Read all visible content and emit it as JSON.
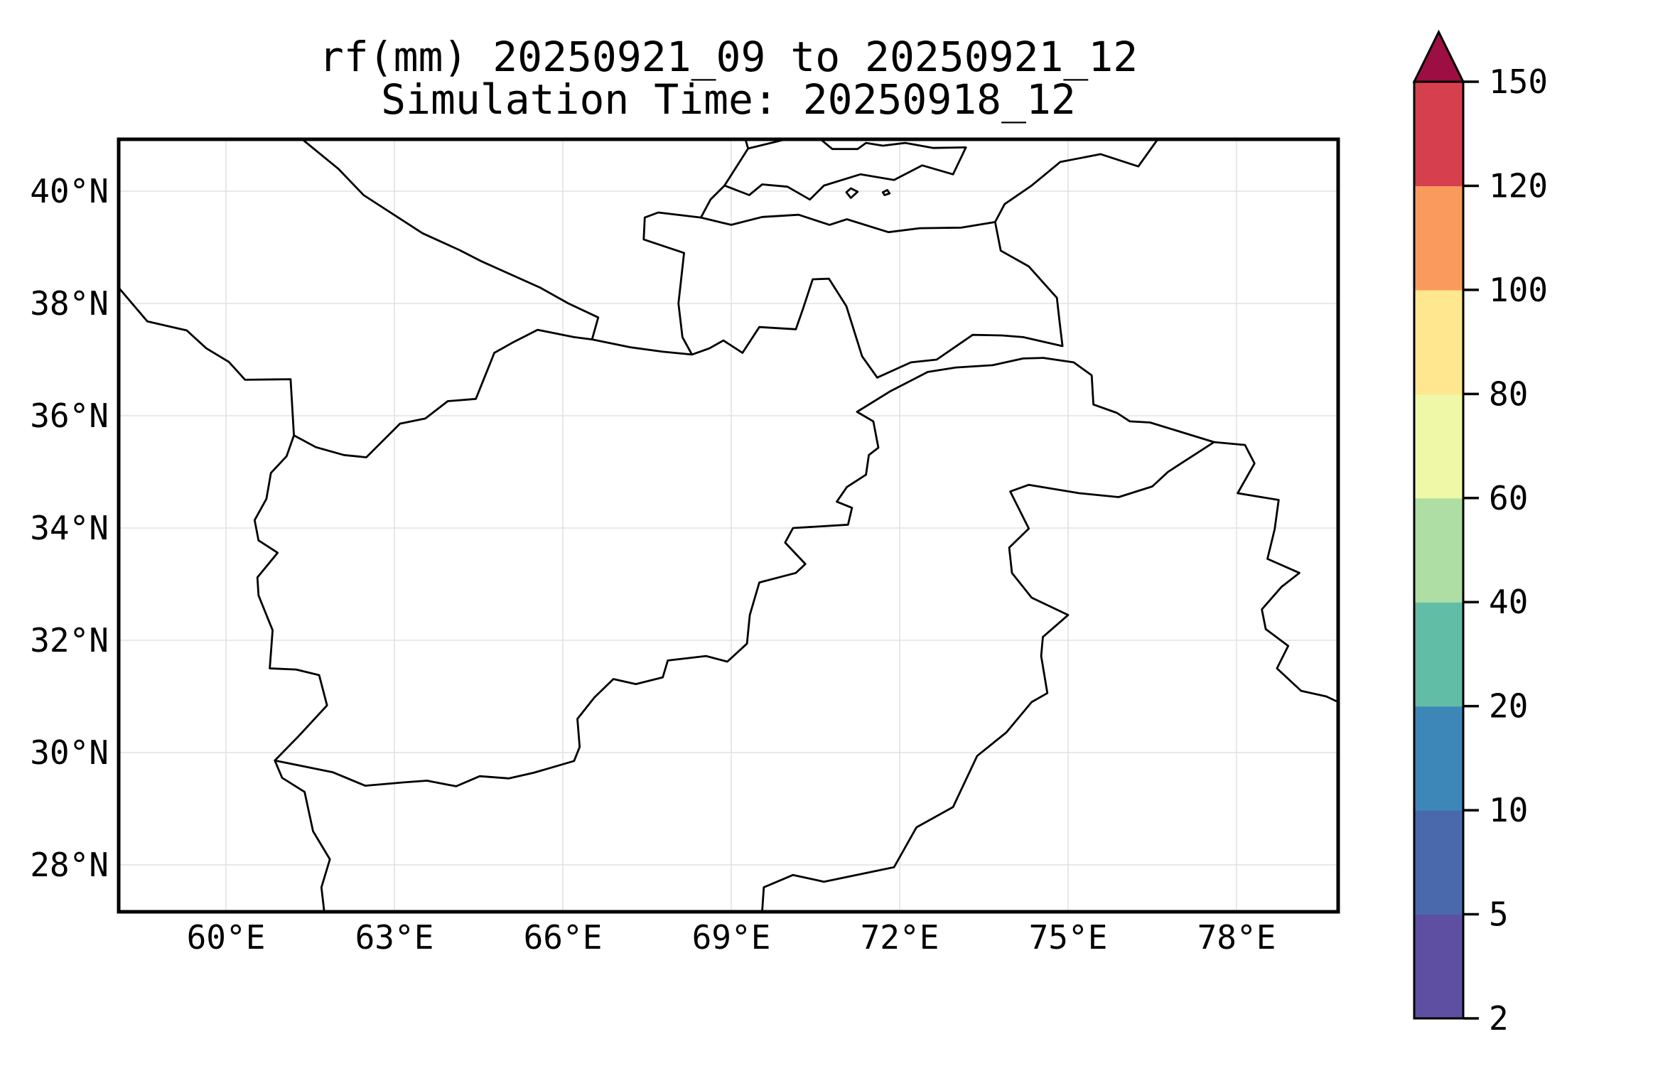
{
  "title": {
    "line1": "rf(mm) 20250921_09 to 20250921_12",
    "line2": "Simulation Time: 20250918_12"
  },
  "chart_data": {
    "type": "map",
    "subtype": "precipitation-forecast-map",
    "projection": "PlateCarree",
    "extent": {
      "lon_min": 58.09,
      "lon_max": 79.81,
      "lat_min": 27.17,
      "lat_max": 40.92
    },
    "grid": true,
    "gridline_color": "#e2e2e2",
    "border_color": "#000000",
    "background_color": "#ffffff",
    "x_ticks": [
      {
        "value": 60,
        "label": "60°E"
      },
      {
        "value": 63,
        "label": "63°E"
      },
      {
        "value": 66,
        "label": "66°E"
      },
      {
        "value": 69,
        "label": "69°E"
      },
      {
        "value": 72,
        "label": "72°E"
      },
      {
        "value": 75,
        "label": "75°E"
      },
      {
        "value": 78,
        "label": "78°E"
      }
    ],
    "y_ticks": [
      {
        "value": 40,
        "label": "40°N"
      },
      {
        "value": 38,
        "label": "38°N"
      },
      {
        "value": 36,
        "label": "36°N"
      },
      {
        "value": 34,
        "label": "34°N"
      },
      {
        "value": 32,
        "label": "32°N"
      },
      {
        "value": 30,
        "label": "30°N"
      },
      {
        "value": 28,
        "label": "28°N"
      }
    ],
    "colorbar": {
      "levels": [
        2,
        5,
        10,
        20,
        40,
        60,
        80,
        100,
        120,
        150
      ],
      "labels": [
        "2",
        "5",
        "10",
        "20",
        "40",
        "60",
        "80",
        "100",
        "120",
        "150"
      ],
      "segment_colors_bottom_to_top": [
        "#5e4fa2",
        "#4a69ad",
        "#3d87b8",
        "#62bda6",
        "#aedea3",
        "#eff8a6",
        "#fee78e",
        "#fa9b5d",
        "#d6404e"
      ],
      "over_color": "#9d0e42",
      "extend": "max",
      "position": "right"
    },
    "rainfall_shading": "none visible (no area at or above 2 mm; map interior is blank white)",
    "borders": {
      "iran_east_chain": [
        [
          58.09,
          38.28
        ],
        [
          58.6,
          37.68
        ],
        [
          59.3,
          37.52
        ],
        [
          59.65,
          37.2
        ],
        [
          60.05,
          36.96
        ],
        [
          60.34,
          36.64
        ],
        [
          61.15,
          36.65
        ],
        [
          61.21,
          35.65
        ],
        [
          61.08,
          35.28
        ],
        [
          60.8,
          34.98
        ],
        [
          60.72,
          34.52
        ],
        [
          60.51,
          34.14
        ],
        [
          60.58,
          33.78
        ],
        [
          60.92,
          33.56
        ],
        [
          60.56,
          33.12
        ],
        [
          60.58,
          32.8
        ],
        [
          60.83,
          32.18
        ],
        [
          60.78,
          31.5
        ],
        [
          61.25,
          31.48
        ],
        [
          61.66,
          31.38
        ],
        [
          61.8,
          30.84
        ],
        [
          61.3,
          30.3
        ],
        [
          60.87,
          29.86
        ],
        [
          61.0,
          29.55
        ],
        [
          61.4,
          29.3
        ],
        [
          61.55,
          28.6
        ],
        [
          61.85,
          28.1
        ],
        [
          61.7,
          27.6
        ],
        [
          61.75,
          27.16
        ]
      ],
      "durand_line": [
        [
          60.87,
          29.86
        ],
        [
          61.9,
          29.65
        ],
        [
          62.48,
          29.41
        ],
        [
          63.17,
          29.47
        ],
        [
          63.58,
          29.5
        ],
        [
          64.1,
          29.4
        ],
        [
          64.52,
          29.58
        ],
        [
          65.04,
          29.54
        ],
        [
          65.48,
          29.64
        ],
        [
          66.2,
          29.85
        ],
        [
          66.3,
          30.1
        ],
        [
          66.26,
          30.6
        ],
        [
          66.56,
          30.98
        ],
        [
          66.9,
          31.31
        ],
        [
          67.3,
          31.22
        ],
        [
          67.78,
          31.34
        ],
        [
          67.87,
          31.64
        ],
        [
          68.55,
          31.72
        ],
        [
          68.93,
          31.62
        ],
        [
          69.28,
          31.94
        ],
        [
          69.33,
          32.45
        ],
        [
          69.5,
          33.03
        ],
        [
          70.15,
          33.2
        ],
        [
          70.32,
          33.36
        ],
        [
          69.96,
          33.74
        ],
        [
          70.1,
          34.0
        ],
        [
          71.08,
          34.06
        ],
        [
          71.15,
          34.36
        ],
        [
          70.88,
          34.47
        ],
        [
          71.06,
          34.73
        ],
        [
          71.4,
          34.95
        ],
        [
          71.45,
          35.3
        ],
        [
          71.62,
          35.43
        ],
        [
          71.53,
          35.9
        ],
        [
          71.24,
          36.07
        ],
        [
          71.84,
          36.44
        ],
        [
          72.5,
          36.78
        ],
        [
          73.0,
          36.86
        ],
        [
          73.65,
          36.9
        ],
        [
          74.2,
          37.02
        ],
        [
          74.56,
          37.03
        ]
      ],
      "turkmen_afghan": [
        [
          61.21,
          35.65
        ],
        [
          61.6,
          35.44
        ],
        [
          62.1,
          35.3
        ],
        [
          62.5,
          35.26
        ],
        [
          63.1,
          35.86
        ],
        [
          63.55,
          35.95
        ],
        [
          63.95,
          36.26
        ],
        [
          64.45,
          36.3
        ],
        [
          64.78,
          37.12
        ],
        [
          65.1,
          37.3
        ],
        [
          65.55,
          37.53
        ],
        [
          66.2,
          37.4
        ],
        [
          66.52,
          37.36
        ]
      ],
      "turkmen_uzbek": [
        [
          61.35,
          40.93
        ],
        [
          62.0,
          40.4
        ],
        [
          62.45,
          39.93
        ],
        [
          63.5,
          39.25
        ],
        [
          64.16,
          38.95
        ],
        [
          64.55,
          38.75
        ],
        [
          65.6,
          38.28
        ],
        [
          66.1,
          38.0
        ],
        [
          66.63,
          37.75
        ],
        [
          66.52,
          37.36
        ]
      ],
      "afghan_north_wakhan_china": [
        [
          66.52,
          37.36
        ],
        [
          67.2,
          37.22
        ],
        [
          67.78,
          37.14
        ],
        [
          68.3,
          37.09
        ],
        [
          68.61,
          37.2
        ],
        [
          68.86,
          37.34
        ],
        [
          69.2,
          37.12
        ],
        [
          69.5,
          37.58
        ],
        [
          70.15,
          37.54
        ],
        [
          70.28,
          37.91
        ],
        [
          70.45,
          38.43
        ],
        [
          70.74,
          38.44
        ],
        [
          71.05,
          37.95
        ],
        [
          71.33,
          37.06
        ],
        [
          71.6,
          36.68
        ],
        [
          72.2,
          36.95
        ],
        [
          72.66,
          37.0
        ],
        [
          73.3,
          37.44
        ],
        [
          73.82,
          37.43
        ],
        [
          74.2,
          37.4
        ],
        [
          74.9,
          37.24
        ],
        [
          74.85,
          37.65
        ],
        [
          74.8,
          38.1
        ],
        [
          74.3,
          38.66
        ],
        [
          73.8,
          38.94
        ],
        [
          73.7,
          39.45
        ],
        [
          73.87,
          39.77
        ],
        [
          74.35,
          40.1
        ],
        [
          74.86,
          40.52
        ],
        [
          75.58,
          40.66
        ],
        [
          76.25,
          40.44
        ],
        [
          76.6,
          40.93
        ]
      ],
      "pak_india": [
        [
          69.55,
          27.17
        ],
        [
          69.58,
          27.6
        ],
        [
          70.1,
          27.82
        ],
        [
          70.65,
          27.7
        ],
        [
          71.9,
          27.96
        ],
        [
          72.3,
          28.67
        ],
        [
          72.95,
          29.03
        ],
        [
          73.38,
          29.94
        ],
        [
          73.9,
          30.36
        ],
        [
          74.35,
          30.9
        ],
        [
          74.63,
          31.06
        ],
        [
          74.52,
          31.72
        ],
        [
          74.55,
          32.06
        ],
        [
          75.0,
          32.45
        ],
        [
          74.35,
          32.76
        ],
        [
          74.0,
          33.2
        ],
        [
          73.95,
          33.65
        ],
        [
          74.3,
          33.99
        ],
        [
          73.97,
          34.65
        ],
        [
          74.3,
          34.77
        ],
        [
          75.2,
          34.62
        ],
        [
          75.9,
          34.55
        ],
        [
          76.5,
          34.74
        ],
        [
          76.78,
          35.0
        ],
        [
          76.98,
          35.13
        ]
      ],
      "kashmir_straight_lines": [
        [
          76.98,
          35.13
        ],
        [
          77.6,
          35.53
        ],
        [
          76.46,
          35.88
        ],
        [
          76.1,
          35.9
        ],
        [
          75.87,
          36.05
        ],
        [
          75.45,
          36.2
        ],
        [
          75.42,
          36.72
        ],
        [
          75.1,
          36.95
        ],
        [
          74.56,
          37.03
        ]
      ],
      "india_china_east": [
        [
          77.6,
          35.53
        ],
        [
          78.15,
          35.48
        ],
        [
          78.32,
          35.15
        ],
        [
          78.02,
          34.62
        ],
        [
          78.75,
          34.5
        ],
        [
          78.68,
          33.98
        ],
        [
          78.55,
          33.45
        ],
        [
          79.12,
          33.2
        ],
        [
          78.8,
          32.95
        ],
        [
          78.45,
          32.55
        ],
        [
          78.52,
          32.2
        ],
        [
          78.92,
          31.9
        ],
        [
          78.72,
          31.5
        ],
        [
          79.15,
          31.1
        ],
        [
          79.6,
          31.0
        ],
        [
          79.81,
          30.9
        ]
      ],
      "tajik_uzbek_west": [
        [
          68.3,
          37.09
        ],
        [
          68.13,
          37.4
        ],
        [
          68.06,
          38.0
        ],
        [
          68.16,
          38.9
        ],
        [
          67.44,
          39.14
        ],
        [
          67.46,
          39.53
        ],
        [
          67.7,
          39.62
        ],
        [
          68.46,
          39.53
        ],
        [
          68.63,
          39.85
        ],
        [
          68.88,
          40.1
        ],
        [
          69.3,
          40.76
        ],
        [
          69.25,
          40.93
        ]
      ],
      "kyrgyz_tajik": [
        [
          68.46,
          39.53
        ],
        [
          69.0,
          39.4
        ],
        [
          69.55,
          39.54
        ],
        [
          70.2,
          39.58
        ],
        [
          70.75,
          39.4
        ],
        [
          71.06,
          39.5
        ],
        [
          71.8,
          39.27
        ],
        [
          72.36,
          39.34
        ],
        [
          73.1,
          39.35
        ],
        [
          73.7,
          39.45
        ]
      ],
      "fergana_rim": [
        [
          68.88,
          40.1
        ],
        [
          69.32,
          39.93
        ],
        [
          69.55,
          40.12
        ],
        [
          70.0,
          40.08
        ],
        [
          70.4,
          39.85
        ],
        [
          70.65,
          40.1
        ],
        [
          71.3,
          40.3
        ],
        [
          71.9,
          40.2
        ],
        [
          72.4,
          40.46
        ],
        [
          72.95,
          40.3
        ],
        [
          73.18,
          40.78
        ],
        [
          72.6,
          40.77
        ],
        [
          72.1,
          40.86
        ],
        [
          71.7,
          40.81
        ],
        [
          71.4,
          40.86
        ],
        [
          71.25,
          40.75
        ],
        [
          70.8,
          40.75
        ],
        [
          70.45,
          41.04
        ],
        [
          69.3,
          40.76
        ]
      ],
      "enclave_sokh": [
        [
          71.05,
          39.98
        ],
        [
          71.13,
          40.05
        ],
        [
          71.25,
          39.99
        ],
        [
          71.13,
          39.88
        ],
        [
          71.05,
          39.98
        ]
      ],
      "enclave_shakhimardan": [
        [
          71.7,
          39.98
        ],
        [
          71.78,
          40.02
        ],
        [
          71.82,
          39.96
        ],
        [
          71.73,
          39.93
        ],
        [
          71.7,
          39.98
        ]
      ]
    }
  }
}
